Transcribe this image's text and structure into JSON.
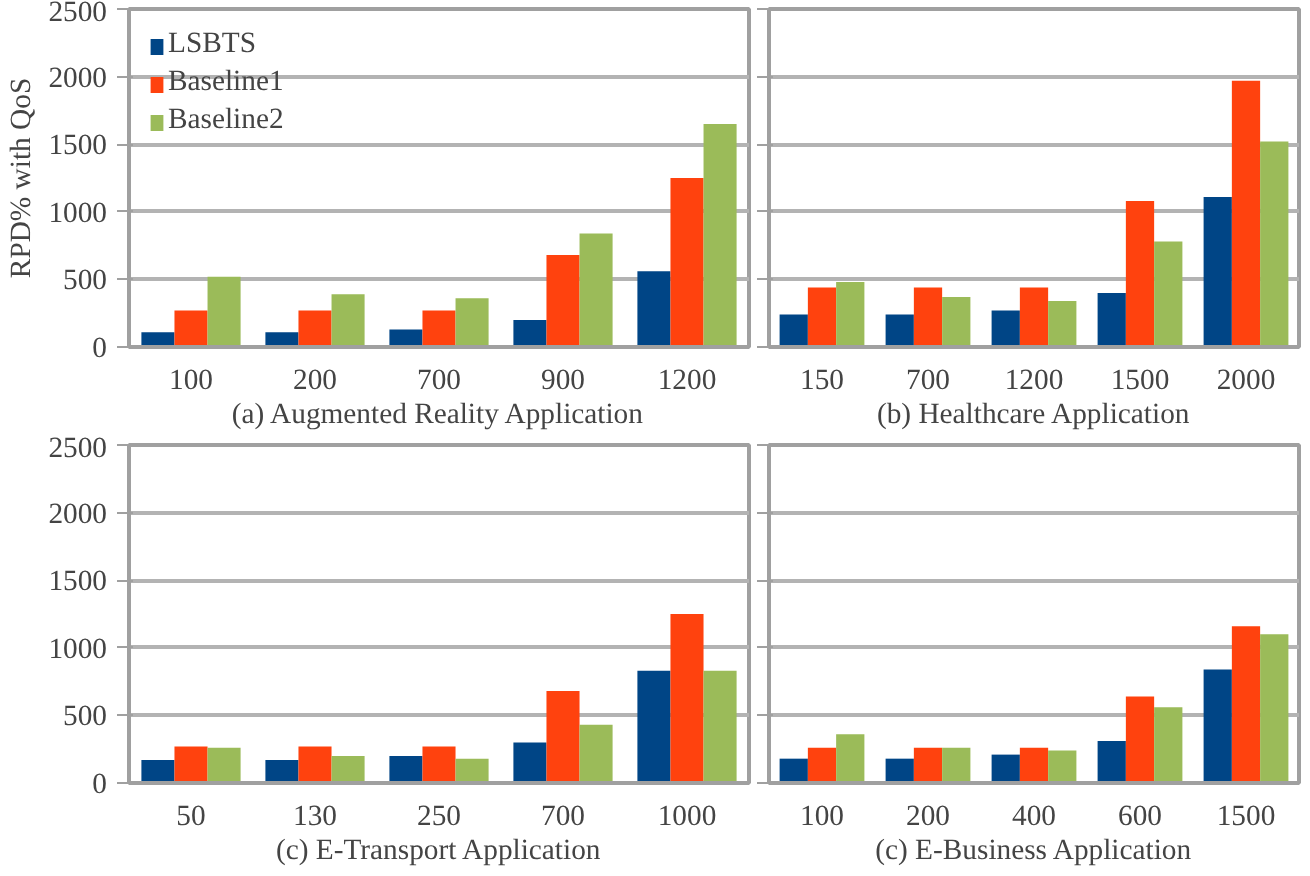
{
  "chart_data": [
    {
      "type": "bar",
      "xlabel": "(a) Augmented Reality Application",
      "ylabel": "RPD% with QoS",
      "categories": [
        "100",
        "200",
        "700",
        "900",
        "1200"
      ],
      "ylim": [
        0,
        2500
      ],
      "yticks": [
        0,
        500,
        1000,
        1500,
        2000,
        2500
      ],
      "grid": "y",
      "legend": "top left",
      "series": [
        {
          "name": "LSBTS",
          "color": "#004586",
          "values": [
            110,
            110,
            130,
            200,
            560
          ]
        },
        {
          "name": "Baseline1",
          "color": "#ff420e",
          "values": [
            270,
            270,
            270,
            680,
            1250
          ]
        },
        {
          "name": "Baseline2",
          "color": "#9bbb59",
          "values": [
            520,
            390,
            360,
            840,
            1650
          ]
        }
      ]
    },
    {
      "type": "bar",
      "xlabel": "(b) Healthcare Application",
      "categories": [
        "150",
        "700",
        "1200",
        "1500",
        "2000"
      ],
      "ylim": [
        0,
        2500
      ],
      "yticks": [
        0,
        500,
        1000,
        1500,
        2000,
        2500
      ],
      "grid": "y",
      "tick_labels": "x",
      "series": [
        {
          "color": "#004586",
          "values": [
            240,
            240,
            270,
            400,
            1110
          ]
        },
        {
          "color": "#ff420e",
          "values": [
            440,
            440,
            440,
            1080,
            1970
          ]
        },
        {
          "color": "#9bbb59",
          "values": [
            480,
            370,
            340,
            780,
            1520
          ]
        }
      ]
    },
    {
      "type": "bar",
      "xlabel": "(c) E-Transport Application",
      "categories": [
        "50",
        "130",
        "250",
        "700",
        "1000"
      ],
      "ylim": [
        0,
        2500
      ],
      "yticks": [
        0,
        500,
        1000,
        1500,
        2000,
        2500
      ],
      "grid": "y",
      "series": [
        {
          "color": "#004586",
          "values": [
            170,
            170,
            200,
            300,
            830
          ]
        },
        {
          "color": "#ff420e",
          "values": [
            270,
            270,
            270,
            680,
            1250
          ]
        },
        {
          "color": "#9bbb59",
          "values": [
            260,
            200,
            180,
            430,
            830
          ]
        }
      ]
    },
    {
      "type": "bar",
      "xlabel": "(c) E-Business Application",
      "categories": [
        "100",
        "200",
        "400",
        "600",
        "1500"
      ],
      "ylim": [
        0,
        2500
      ],
      "yticks": [
        0,
        500,
        1000,
        1500,
        2000,
        2500
      ],
      "grid": "y",
      "tick_labels": "x",
      "series": [
        {
          "color": "#004586",
          "values": [
            180,
            180,
            210,
            310,
            840
          ]
        },
        {
          "color": "#ff420e",
          "values": [
            260,
            260,
            260,
            640,
            1160
          ]
        },
        {
          "color": "#9bbb59",
          "values": [
            360,
            260,
            240,
            560,
            1100
          ]
        }
      ]
    }
  ]
}
